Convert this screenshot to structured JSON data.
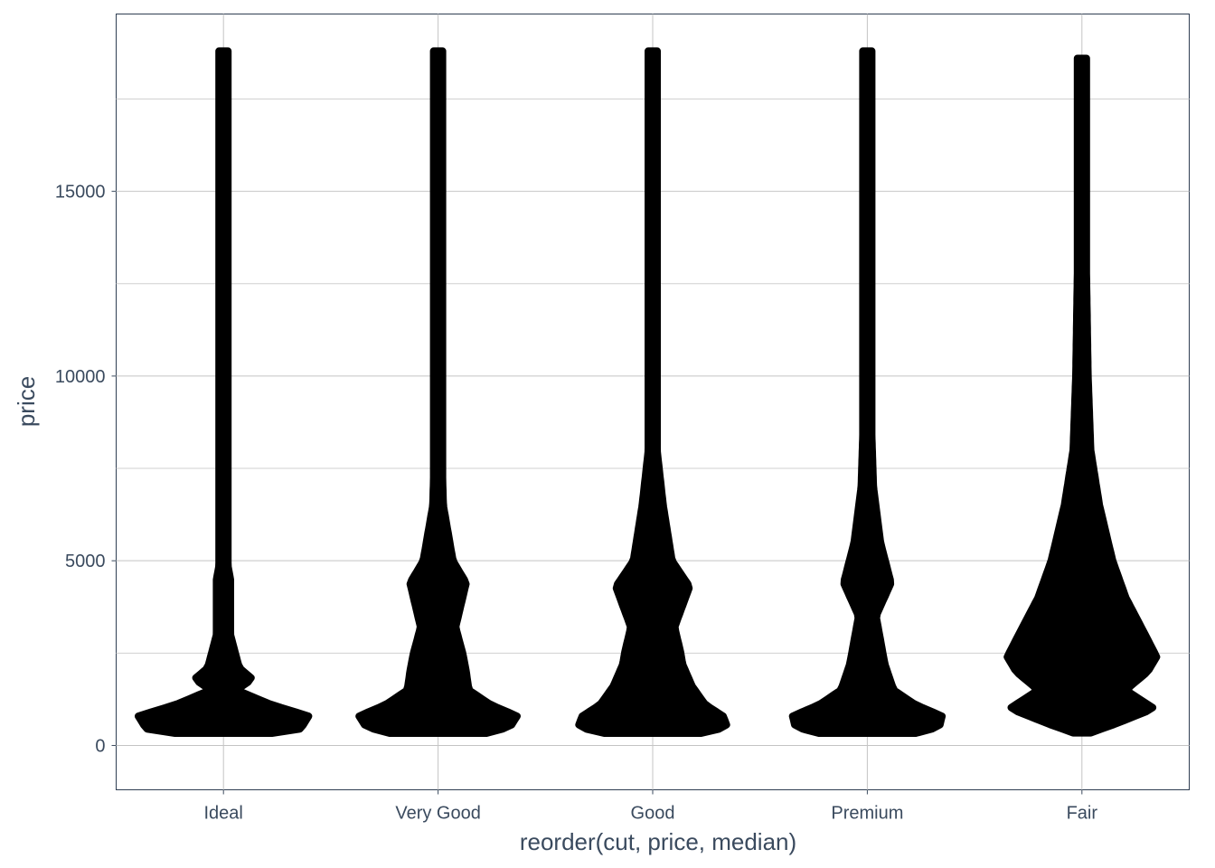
{
  "chart_data": {
    "type": "beeswarm",
    "xlabel": "reorder(cut, price, median)",
    "ylabel": "price",
    "ylim": [
      -1200,
      19800
    ],
    "yticks": [
      0,
      5000,
      10000,
      15000
    ],
    "yticklabels": [
      "0",
      "5000",
      "10000",
      "15000"
    ],
    "grid": true,
    "point_color": "#000000",
    "categories": [
      "Ideal",
      "Very Good",
      "Good",
      "Premium",
      "Fair"
    ],
    "series": [
      {
        "name": "Ideal",
        "min_price": 330,
        "max_price": 18800,
        "density_profile": [
          [
            330,
            0.55
          ],
          [
            450,
            0.88
          ],
          [
            800,
            0.97
          ],
          [
            1100,
            0.55
          ],
          [
            1500,
            0.15
          ],
          [
            1800,
            0.33
          ],
          [
            2100,
            0.18
          ],
          [
            3000,
            0.08
          ],
          [
            4500,
            0.08
          ],
          [
            5000,
            0.04
          ],
          [
            7000,
            0.03
          ],
          [
            10000,
            0.02
          ],
          [
            15000,
            0.02
          ],
          [
            18800,
            0.015
          ]
        ]
      },
      {
        "name": "Very Good",
        "min_price": 330,
        "max_price": 18800,
        "density_profile": [
          [
            330,
            0.55
          ],
          [
            500,
            0.82
          ],
          [
            800,
            0.9
          ],
          [
            1100,
            0.6
          ],
          [
            1500,
            0.35
          ],
          [
            2000,
            0.32
          ],
          [
            2500,
            0.28
          ],
          [
            3200,
            0.2
          ],
          [
            4400,
            0.32
          ],
          [
            5000,
            0.17
          ],
          [
            6500,
            0.06
          ],
          [
            9000,
            0.03
          ],
          [
            14000,
            0.02
          ],
          [
            18800,
            0.015
          ]
        ]
      },
      {
        "name": "Good",
        "min_price": 330,
        "max_price": 18800,
        "density_profile": [
          [
            330,
            0.55
          ],
          [
            500,
            0.85
          ],
          [
            800,
            0.8
          ],
          [
            1100,
            0.6
          ],
          [
            1600,
            0.45
          ],
          [
            2200,
            0.34
          ],
          [
            2500,
            0.32
          ],
          [
            3200,
            0.25
          ],
          [
            4300,
            0.42
          ],
          [
            5000,
            0.22
          ],
          [
            6500,
            0.12
          ],
          [
            8000,
            0.05
          ],
          [
            12000,
            0.03
          ],
          [
            18800,
            0.015
          ]
        ]
      },
      {
        "name": "Premium",
        "min_price": 330,
        "max_price": 18800,
        "density_profile": [
          [
            330,
            0.55
          ],
          [
            500,
            0.82
          ],
          [
            800,
            0.85
          ],
          [
            1100,
            0.55
          ],
          [
            1500,
            0.3
          ],
          [
            2200,
            0.2
          ],
          [
            3500,
            0.1
          ],
          [
            4400,
            0.27
          ],
          [
            5500,
            0.15
          ],
          [
            7000,
            0.07
          ],
          [
            10000,
            0.03
          ],
          [
            14000,
            0.02
          ],
          [
            18800,
            0.015
          ]
        ]
      },
      {
        "name": "Fair",
        "min_price": 340,
        "max_price": 18600,
        "density_profile": [
          [
            340,
            0.1
          ],
          [
            600,
            0.4
          ],
          [
            1000,
            0.82
          ],
          [
            1500,
            0.5
          ],
          [
            2000,
            0.75
          ],
          [
            2400,
            0.85
          ],
          [
            3000,
            0.72
          ],
          [
            4000,
            0.5
          ],
          [
            5000,
            0.35
          ],
          [
            6500,
            0.2
          ],
          [
            8000,
            0.1
          ],
          [
            10000,
            0.07
          ],
          [
            13000,
            0.05
          ],
          [
            16000,
            0.04
          ],
          [
            18600,
            0.025
          ]
        ]
      }
    ]
  }
}
